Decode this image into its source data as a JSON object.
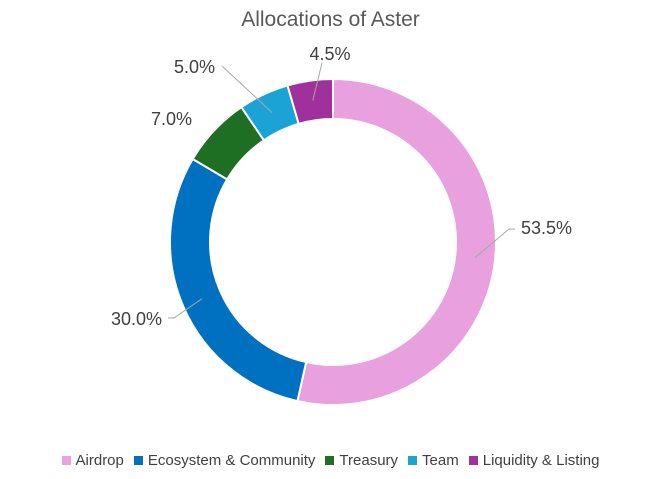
{
  "chart_data": {
    "type": "pie",
    "title": "Allocations of Aster",
    "donut": true,
    "legend_position": "bottom",
    "slices": [
      {
        "name": "Airdrop",
        "value": 53.5,
        "label": "53.5%",
        "color": "#E8A0DE"
      },
      {
        "name": "Ecosystem & Community",
        "value": 30.0,
        "label": "30.0%",
        "color": "#0070C0"
      },
      {
        "name": "Treasury",
        "value": 7.0,
        "label": "7.0%",
        "color": "#1E6E23"
      },
      {
        "name": "Team",
        "value": 5.0,
        "label": "5.0%",
        "color": "#1BA3D6"
      },
      {
        "name": "Liquidity & Listing",
        "value": 4.5,
        "label": "4.5%",
        "color": "#A0309B"
      }
    ]
  }
}
